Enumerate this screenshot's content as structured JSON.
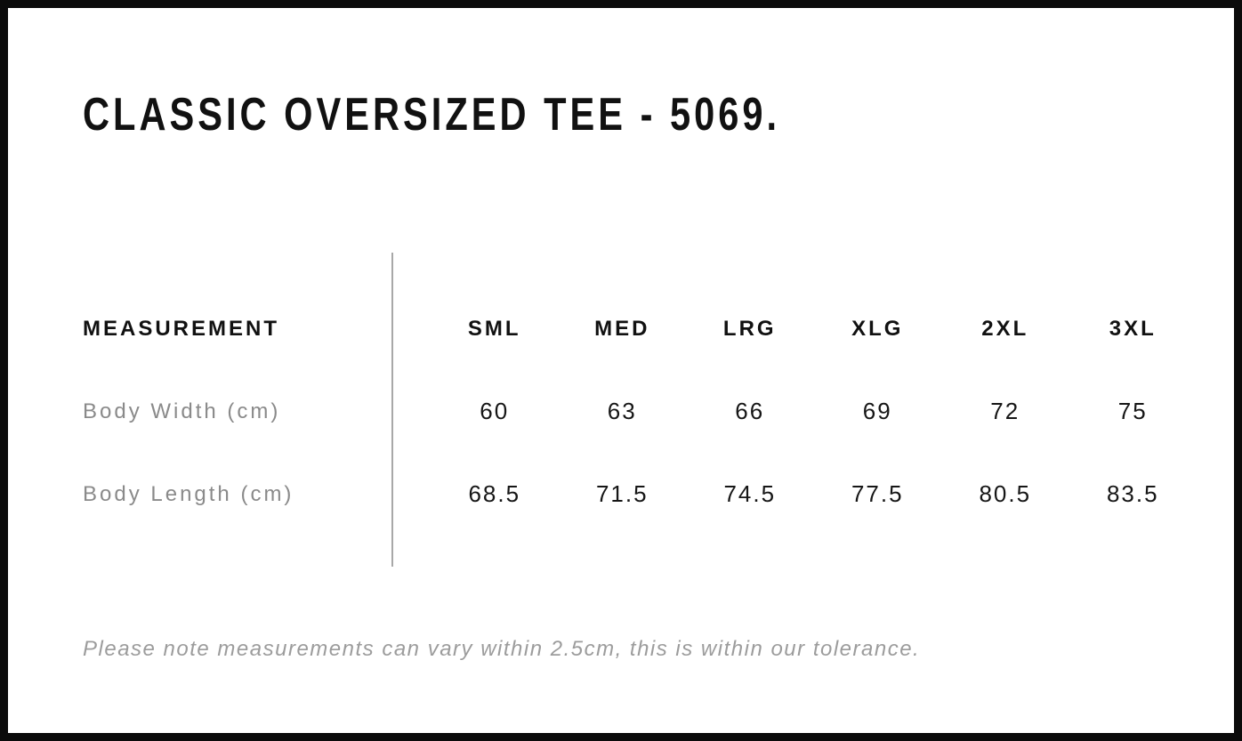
{
  "page": {
    "title": "CLASSIC OVERSIZED TEE - 5069.",
    "tolerance_note": "Please note measurements can vary within 2.5cm, this is within our tolerance."
  },
  "size_chart": {
    "type": "table",
    "columns": [
      "MEASUREMENT",
      "SML",
      "MED",
      "LRG",
      "XLG",
      "2XL",
      "3XL"
    ],
    "rows": [
      {
        "label": "Body Width (cm)",
        "values": [
          "60",
          "63",
          "66",
          "69",
          "72",
          "75"
        ]
      },
      {
        "label": "Body Length (cm)",
        "values": [
          "68.5",
          "71.5",
          "74.5",
          "77.5",
          "80.5",
          "83.5"
        ]
      }
    ]
  },
  "colors": {
    "frame_border": "#0b0b0b",
    "text_primary": "#111111",
    "label_gray": "#8a8a8a",
    "note_gray": "#9c9c9c",
    "divider_gray": "#a8a8a8",
    "background": "#ffffff"
  }
}
